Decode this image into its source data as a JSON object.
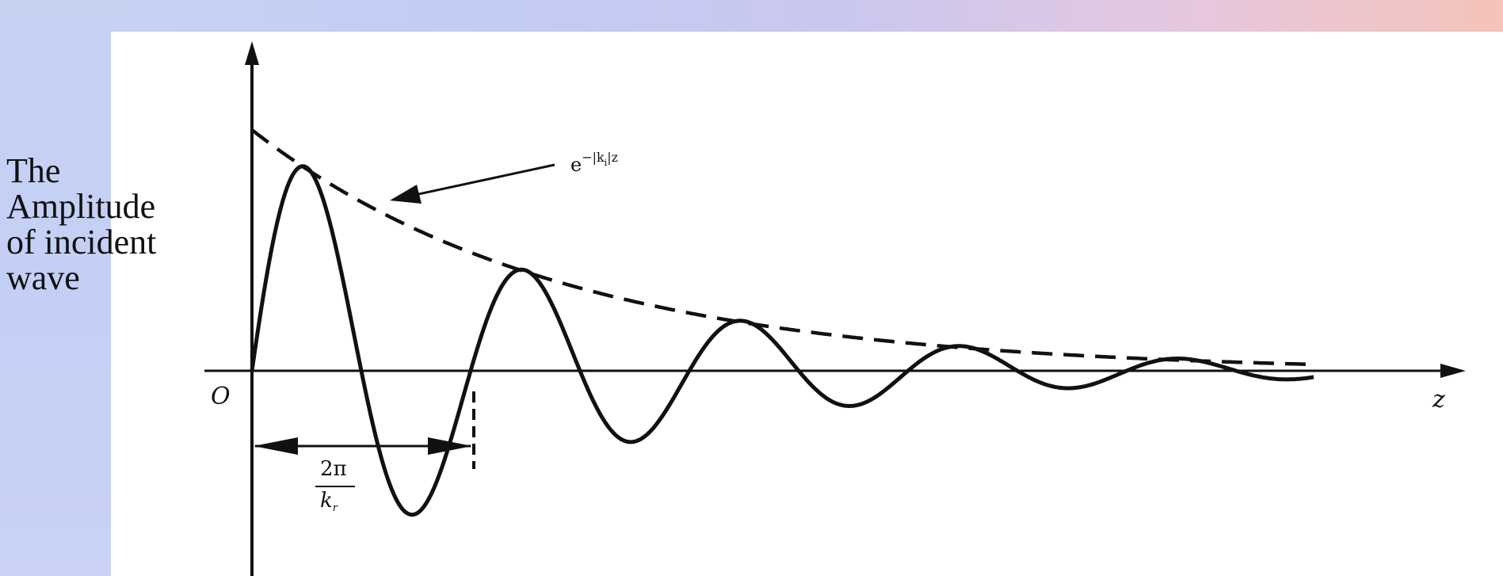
{
  "ylabel_lines": [
    "The",
    "Amplitude",
    "of incident",
    "wave"
  ],
  "origin_label": "O",
  "x_axis_label": "z",
  "envelope_label": {
    "base": "e",
    "exponent": "−|k",
    "exponent_subscript": "i",
    "exponent_tail": "|z"
  },
  "period_label": {
    "numerator": "2π",
    "denominator": "k",
    "denominator_subscript": "r"
  },
  "colors": {
    "background_left": "#c7d2f3",
    "background_right": "#f4c3b9",
    "panel": "#ffffff",
    "ink": "#111111"
  }
}
